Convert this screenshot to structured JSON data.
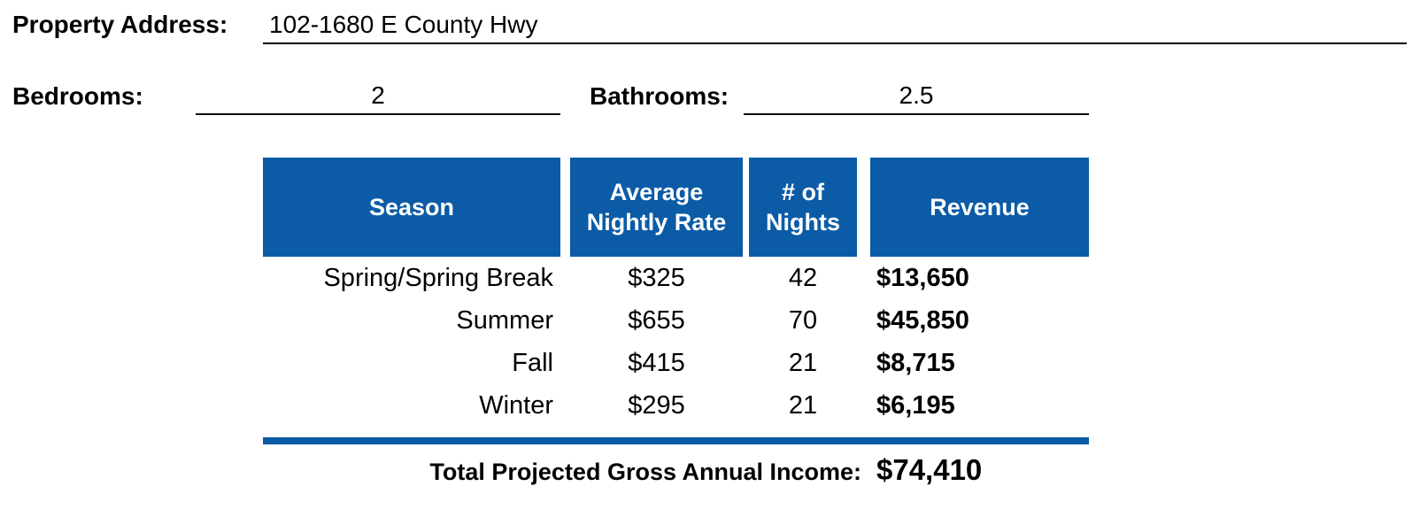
{
  "property": {
    "address_label": "Property Address:",
    "address_value": "102-1680 E County Hwy"
  },
  "bedrooms": {
    "label": "Bedrooms:",
    "value": "2"
  },
  "bathrooms": {
    "label": "Bathrooms:",
    "value": "2.5"
  },
  "table": {
    "headers": {
      "season": "Season",
      "rate_line1": "Average",
      "rate_line2": "Nightly Rate",
      "nights_line1": "# of",
      "nights_line2": "Nights",
      "revenue": "Revenue"
    },
    "rows": [
      {
        "season": "Spring/Spring Break",
        "rate": "$325",
        "nights": "42",
        "revenue": "$13,650"
      },
      {
        "season": "Summer",
        "rate": "$655",
        "nights": "70",
        "revenue": "$45,850"
      },
      {
        "season": "Fall",
        "rate": "$415",
        "nights": "21",
        "revenue": "$8,715"
      },
      {
        "season": "Winter",
        "rate": "$295",
        "nights": "21",
        "revenue": "$6,195"
      }
    ],
    "total_label": "Total Projected Gross Annual Income:",
    "total_value": "$74,410"
  },
  "colors": {
    "header_bg": "#0b5ba6",
    "header_text": "#ffffff"
  }
}
